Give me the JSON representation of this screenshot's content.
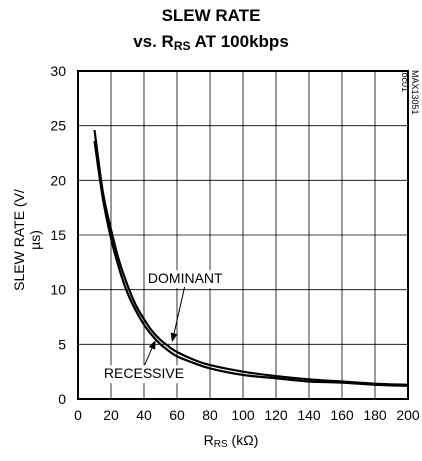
{
  "chart_data": {
    "type": "line",
    "title_line1": "SLEW RATE",
    "title_line2_prefix": "vs. R",
    "title_line2_sub": "RS",
    "title_line2_suffix": " AT 100kbps",
    "ylabel": "SLEW RATE (V/µs)",
    "xlabel_main": "R",
    "xlabel_sub": "RS",
    "xlabel_unit": " (kΩ)",
    "watermark": "MAX13051 toc01",
    "xlim": [
      0,
      200
    ],
    "ylim": [
      0,
      30
    ],
    "xticks": [
      0,
      20,
      40,
      60,
      80,
      100,
      120,
      140,
      160,
      180,
      200
    ],
    "yticks": [
      0,
      5,
      10,
      15,
      20,
      25,
      30
    ],
    "grid": true,
    "series": [
      {
        "name": "DOMINANT",
        "x": [
          10,
          15,
          20,
          25,
          30,
          35,
          40,
          45,
          50,
          55,
          60,
          70,
          80,
          100,
          120,
          140,
          160,
          180,
          200
        ],
        "y": [
          24.6,
          19.0,
          15.5,
          12.6,
          10.4,
          8.6,
          7.3,
          6.2,
          5.4,
          4.8,
          4.3,
          3.6,
          3.1,
          2.5,
          2.1,
          1.8,
          1.6,
          1.4,
          1.3
        ]
      },
      {
        "name": "RECESSIVE",
        "x": [
          10,
          15,
          20,
          25,
          30,
          35,
          40,
          45,
          50,
          55,
          60,
          70,
          80,
          100,
          120,
          140,
          160,
          180,
          200
        ],
        "y": [
          23.6,
          18.4,
          14.7,
          11.9,
          9.7,
          8.1,
          6.8,
          5.8,
          5.0,
          4.4,
          3.9,
          3.3,
          2.8,
          2.2,
          1.9,
          1.6,
          1.5,
          1.3,
          1.2
        ]
      }
    ],
    "annotations": [
      {
        "text": "DOMINANT",
        "target_series": "DOMINANT",
        "target": [
          57,
          5.2
        ],
        "label_pos": [
          65,
          10.6
        ]
      },
      {
        "text": "RECESSIVE",
        "target_series": "RECESSIVE",
        "target": [
          47,
          5.4
        ],
        "label_pos": [
          40,
          1.9
        ]
      }
    ]
  }
}
